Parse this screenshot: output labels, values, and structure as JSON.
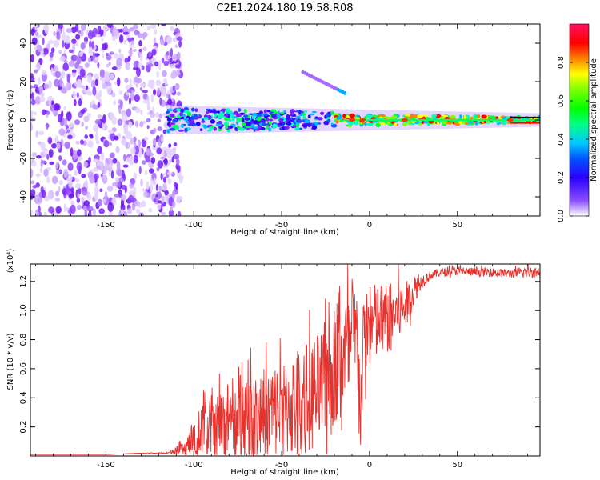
{
  "title": "C2E1.2024.180.19.58.R08",
  "chart_data": [
    {
      "type": "heatmap",
      "xlabel": "Height of straight line (km)",
      "ylabel": "Frequency (Hz)",
      "xlim": [
        -193,
        97
      ],
      "ylim": [
        -50,
        50
      ],
      "x_ticks": [
        -150,
        -100,
        -50,
        0,
        50
      ],
      "x_tick_labels": [
        "-150",
        "-100",
        "-50",
        "0",
        "50"
      ],
      "y_ticks": [
        -40,
        -20,
        0,
        20,
        40
      ],
      "y_tick_labels": [
        "-40",
        "-20",
        "0",
        "20",
        "40"
      ],
      "colorbar": {
        "label": "Normalized spectral amplitude",
        "range": [
          0,
          1
        ],
        "ticks": [
          0.0,
          0.2,
          0.4,
          0.6,
          0.8
        ],
        "tick_labels": [
          "0.0",
          "0.2",
          "0.4",
          "0.6",
          "0.8"
        ]
      },
      "structure": {
        "noise_region_x": [
          -193,
          -113
        ],
        "echo_band_center_hz": 0,
        "echo_band_halfwidth_hz": [
          6,
          2
        ],
        "streak": {
          "x": [
            -38,
            -14
          ],
          "y": [
            25,
            14
          ]
        }
      }
    },
    {
      "type": "line",
      "xlabel": "Height of straight line (km)",
      "ylabel": "SNR (10 * v/v)",
      "ylabel_multiplier": "(x10⁴)",
      "xlim": [
        -193,
        97
      ],
      "ylim": [
        0,
        1.32
      ],
      "x_ticks": [
        -150,
        -100,
        -50,
        0,
        50
      ],
      "x_tick_labels": [
        "-150",
        "-100",
        "-50",
        "0",
        "50"
      ],
      "y_ticks": [
        0.2,
        0.4,
        0.6,
        0.8,
        1.0,
        1.2
      ],
      "y_tick_labels": [
        "0.2",
        "0.4",
        "0.6",
        "0.8",
        "1.0",
        "1.2"
      ],
      "color": "#e8302c",
      "series": [
        {
          "x": [
            -190,
            -170,
            -150,
            -130,
            -115,
            -105,
            -100,
            -95,
            -90,
            -80,
            -70,
            -60,
            -50,
            -45,
            -40,
            -30,
            -25,
            -20,
            -15,
            -10,
            -7,
            -5,
            -3,
            0,
            10,
            20,
            25,
            30,
            35,
            40,
            50,
            60,
            70,
            80,
            90,
            95
          ],
          "y": [
            0.01,
            0.01,
            0.01,
            0.02,
            0.02,
            0.05,
            0.1,
            0.14,
            0.18,
            0.22,
            0.25,
            0.26,
            0.29,
            0.3,
            0.33,
            0.4,
            0.45,
            0.55,
            0.65,
            0.72,
            0.78,
            0.3,
            0.82,
            0.86,
            0.92,
            1.0,
            1.12,
            1.2,
            1.24,
            1.26,
            1.27,
            1.26,
            1.26,
            1.25,
            1.26,
            1.26
          ],
          "noise_amplitude": [
            0,
            0,
            0,
            0,
            0.005,
            0.05,
            0.12,
            0.18,
            0.22,
            0.28,
            0.3,
            0.32,
            0.34,
            0.36,
            0.38,
            0.4,
            0.42,
            0.44,
            0.42,
            0.4,
            0.38,
            0.3,
            0.35,
            0.3,
            0.25,
            0.18,
            0.1,
            0.05,
            0.03,
            0.03,
            0.03,
            0.03,
            0.03,
            0.03,
            0.04,
            0.04
          ]
        }
      ]
    }
  ]
}
